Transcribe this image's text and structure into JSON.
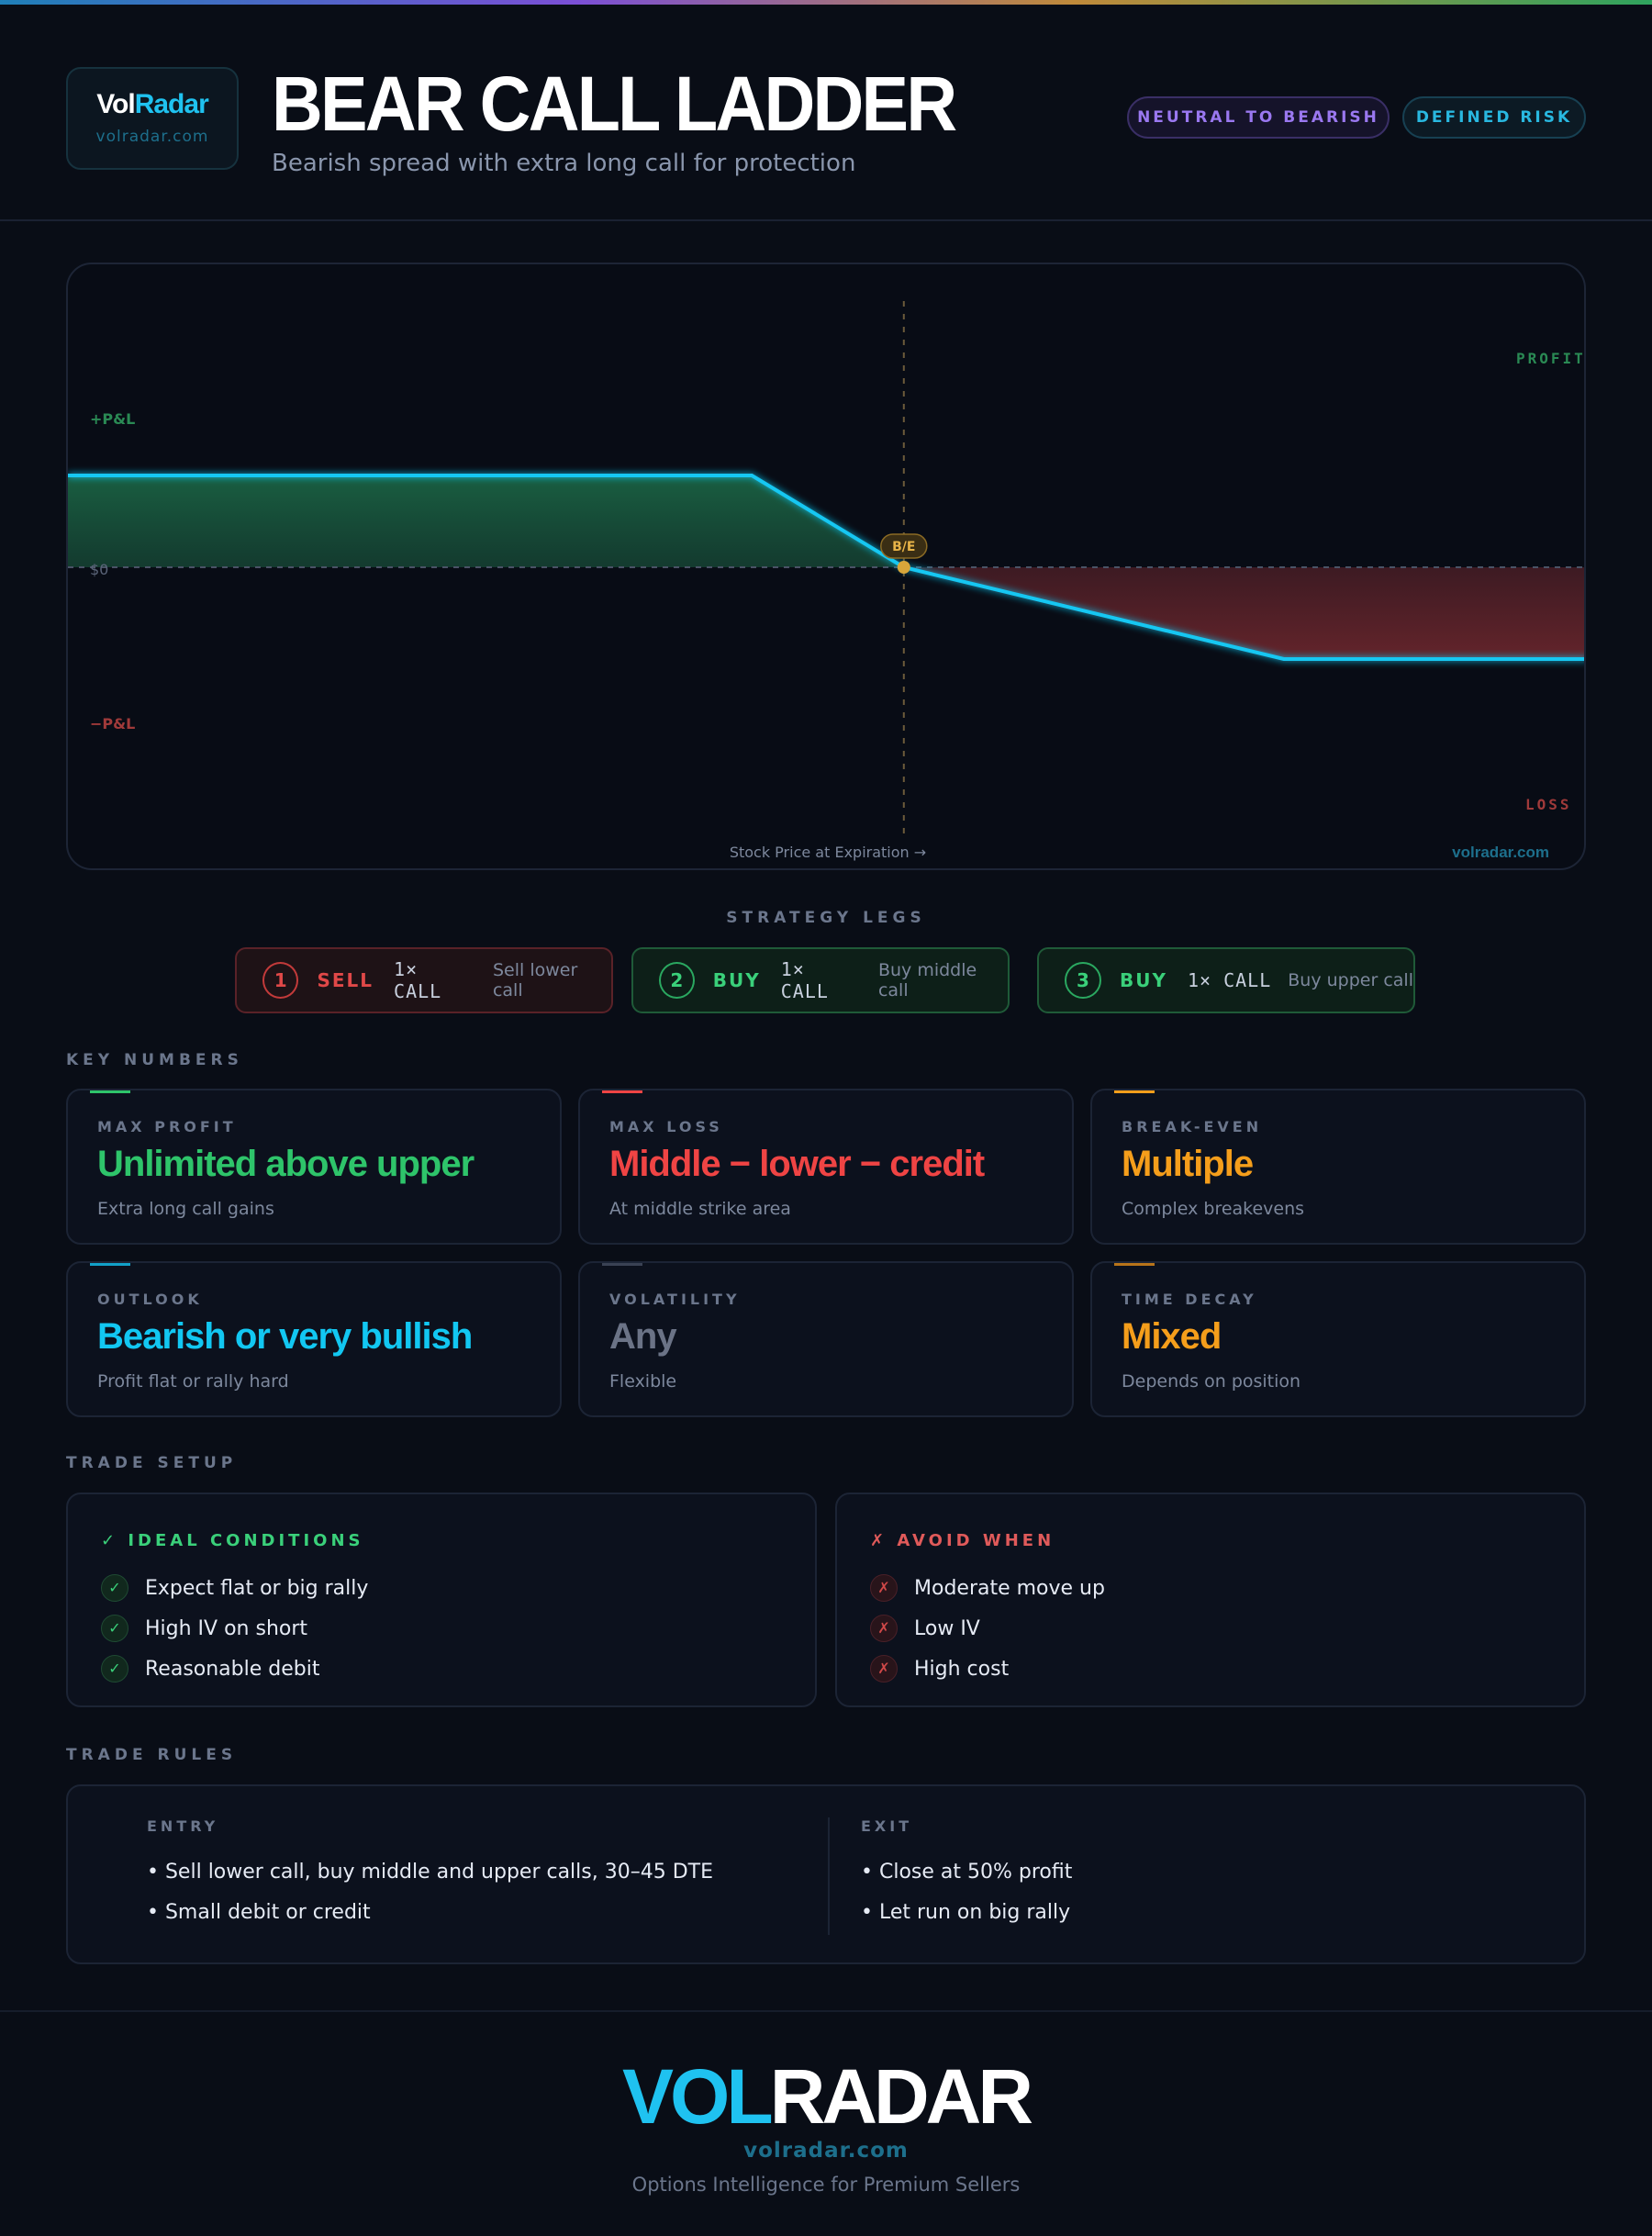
{
  "brand": {
    "logo_vol": "Vol",
    "logo_radar": "Radar",
    "url": "volradar.com",
    "footer_vol": "VOL",
    "footer_radar": "RADAR",
    "tagline": "Options Intelligence for Premium Sellers"
  },
  "header": {
    "title": "BEAR CALL LADDER",
    "subtitle": "Bearish spread with extra long call for protection",
    "tags": [
      "NEUTRAL TO BEARISH",
      "DEFINED RISK"
    ]
  },
  "chart_data": {
    "type": "area",
    "title": "",
    "xlabel": "Stock Price at Expiration →",
    "ylabel": "",
    "x": [
      0,
      45,
      55,
      80,
      100
    ],
    "y": [
      1,
      1,
      0,
      -1,
      -1
    ],
    "xlim": [
      0,
      100
    ],
    "ylim": [
      -2,
      2
    ],
    "y_labels": [
      "+P&L",
      "$0",
      "−P&L"
    ],
    "zone_labels": {
      "profit": "PROFIT",
      "loss": "LOSS"
    },
    "breakeven": {
      "x": 55,
      "label": "B/E"
    },
    "watermark": "volradar.com",
    "colors": {
      "line": "#12c7f2",
      "profit": "#1f7a50",
      "loss": "#7a2a30",
      "breakeven": "#d8a63a"
    }
  },
  "legs": {
    "label": "STRATEGY LEGS",
    "items": [
      {
        "num": "1",
        "action": "SELL",
        "qty": "1× CALL",
        "desc": "Sell lower call"
      },
      {
        "num": "2",
        "action": "BUY",
        "qty": "1× CALL",
        "desc": "Buy middle call"
      },
      {
        "num": "3",
        "action": "BUY",
        "qty": "1× CALL",
        "desc": "Buy upper call"
      }
    ]
  },
  "key_numbers": {
    "label": "KEY NUMBERS",
    "cards": [
      {
        "label": "MAX PROFIT",
        "value": "Unlimited above upper",
        "sub": "Extra long call gains",
        "color": "#2ec46a"
      },
      {
        "label": "MAX LOSS",
        "value": "Middle − lower − credit",
        "sub": "At middle strike area",
        "color": "#ef4444"
      },
      {
        "label": "BREAK-EVEN",
        "value": "Multiple",
        "sub": "Complex breakevens",
        "color": "#f59e1b"
      },
      {
        "label": "OUTLOOK",
        "value": "Bearish or very bullish",
        "sub": "Profit flat or rally hard",
        "color": "#12c7f2"
      },
      {
        "label": "VOLATILITY",
        "value": "Any",
        "sub": "Flexible",
        "color": "#6b7386"
      },
      {
        "label": "TIME DECAY",
        "value": "Mixed",
        "sub": "Depends on position",
        "color": "#f59e1b"
      }
    ]
  },
  "trade_setup": {
    "label": "TRADE SETUP",
    "ideal": {
      "title": "✓ IDEAL CONDITIONS",
      "items": [
        "Expect flat or big rally",
        "High IV on short",
        "Reasonable debit"
      ]
    },
    "avoid": {
      "title": "✗ AVOID WHEN",
      "items": [
        "Moderate move up",
        "Low IV",
        "High cost"
      ]
    }
  },
  "trade_rules": {
    "label": "TRADE RULES",
    "entry": {
      "title": "ENTRY",
      "items": [
        "• Sell lower call, buy middle and upper calls, 30–45 DTE",
        "• Small debit or credit"
      ]
    },
    "exit": {
      "title": "EXIT",
      "items": [
        "• Close at 50% profit",
        "• Let run on big rally"
      ]
    }
  }
}
